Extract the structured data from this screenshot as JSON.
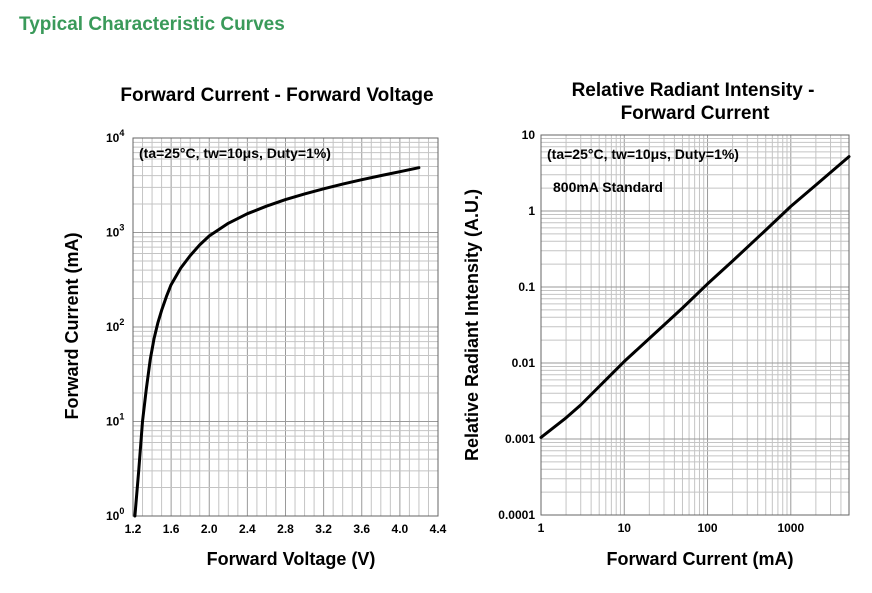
{
  "page": {
    "section_title": "Typical Characteristic Curves"
  },
  "chart_data": [
    {
      "type": "line",
      "title": "Forward Current - Forward Voltage",
      "xlabel": "Forward Voltage (V)",
      "ylabel": "Forward Current (mA)",
      "annotation": "(ta=25°C, tw=10μs, Duty=1%)",
      "xlim": [
        1.2,
        4.4
      ],
      "ylim": [
        1,
        10000
      ],
      "yscale": "log",
      "grid": true,
      "xticks": [
        1.2,
        1.6,
        2.0,
        2.4,
        2.8,
        3.2,
        3.6,
        4.0,
        4.4
      ],
      "xtick_labels": [
        "1.2",
        "1.6",
        "2.0",
        "2.4",
        "2.8",
        "3.2",
        "3.6",
        "4.0",
        "4.4"
      ],
      "yticks": [
        1,
        10,
        100,
        1000,
        10000
      ],
      "ytick_labels": [
        {
          "base": "10",
          "exp": "0"
        },
        {
          "base": "10",
          "exp": "1"
        },
        {
          "base": "10",
          "exp": "2"
        },
        {
          "base": "10",
          "exp": "3"
        },
        {
          "base": "10",
          "exp": "4"
        }
      ],
      "series": [
        {
          "x": [
            1.22,
            1.26,
            1.3,
            1.34,
            1.38,
            1.42,
            1.46,
            1.5,
            1.55,
            1.6,
            1.7,
            1.8,
            1.9,
            2.0,
            2.2,
            2.4,
            2.6,
            2.8,
            3.0,
            3.2,
            3.4,
            3.6,
            3.8,
            4.0,
            4.2
          ],
          "y": [
            1,
            3,
            10,
            22,
            45,
            75,
            110,
            150,
            210,
            280,
            420,
            570,
            740,
            920,
            1250,
            1580,
            1900,
            2230,
            2560,
            2900,
            3250,
            3620,
            4000,
            4400,
            4850
          ]
        }
      ]
    },
    {
      "type": "line",
      "title": "Relative Radiant Intensity -",
      "title_line2": "Forward Current",
      "xlabel": "Forward Current (mA)",
      "ylabel": "Relative Radiant Intensity (A.U.)",
      "annotation": "(ta=25°C, tw=10μs, Duty=1%)",
      "annotation2": "800mA Standard",
      "xlim": [
        1,
        5000
      ],
      "ylim": [
        0.0001,
        10
      ],
      "xscale": "log",
      "yscale": "log",
      "grid": true,
      "xticks": [
        1,
        10,
        100,
        1000
      ],
      "xtick_labels": [
        "1",
        "10",
        "100",
        "1000"
      ],
      "yticks": [
        0.0001,
        0.001,
        0.01,
        0.1,
        1,
        10
      ],
      "ytick_labels": [
        "0.0001",
        "0.001",
        "0.01",
        "0.1",
        "1",
        "10"
      ],
      "series": [
        {
          "x": [
            1,
            2,
            3,
            5,
            10,
            20,
            50,
            100,
            200,
            500,
            1000,
            2000,
            5000
          ],
          "y": [
            0.00105,
            0.0019,
            0.0028,
            0.0049,
            0.0105,
            0.021,
            0.053,
            0.11,
            0.22,
            0.56,
            1.15,
            2.2,
            5.2
          ]
        }
      ]
    }
  ]
}
